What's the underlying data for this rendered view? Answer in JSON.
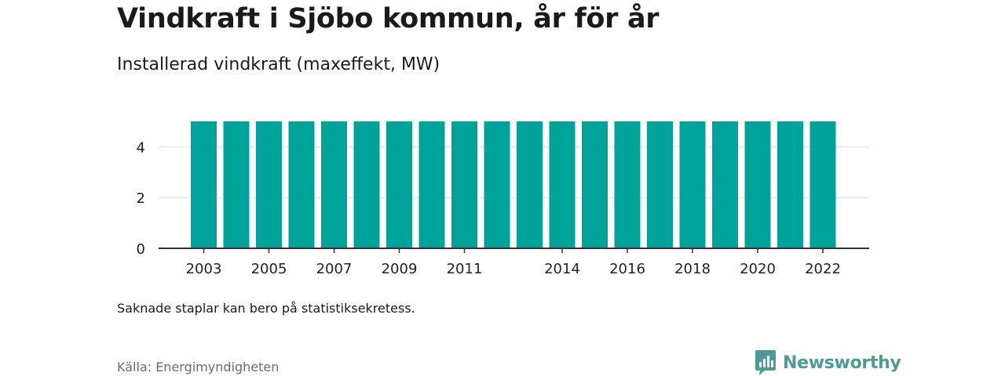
{
  "header": {
    "title": "Vindkraft i Sjöbo kommun, år för år",
    "subtitle": "Installerad vindkraft (maxeffekt, MW)"
  },
  "chart_data": {
    "type": "bar",
    "categories": [
      "2003",
      "2004",
      "2005",
      "2006",
      "2007",
      "2008",
      "2009",
      "2010",
      "2011",
      "2012",
      "2013",
      "2014",
      "2015",
      "2016",
      "2017",
      "2018",
      "2019",
      "2020",
      "2021",
      "2022"
    ],
    "values": [
      5,
      5,
      5,
      5,
      5,
      5,
      5,
      5,
      5,
      5,
      5,
      5,
      5,
      5,
      5,
      5,
      5,
      5,
      5,
      5
    ],
    "x_tick_labels": [
      "2003",
      "2005",
      "2007",
      "2009",
      "2011",
      "2014",
      "2016",
      "2018",
      "2020",
      "2022"
    ],
    "y_tick_labels": [
      "0",
      "2",
      "4"
    ],
    "ylim": [
      0,
      5
    ],
    "grid": true,
    "bar_color": "#00a39a",
    "title": "Vindkraft i Sjöbo kommun, år för år",
    "xlabel": "",
    "ylabel": ""
  },
  "footer": {
    "note": "Saknade staplar kan bero på statistiksekretess.",
    "source": "Källa: Energimyndigheten",
    "brand": "Newsworthy",
    "brand_color": "#4d9b96"
  }
}
